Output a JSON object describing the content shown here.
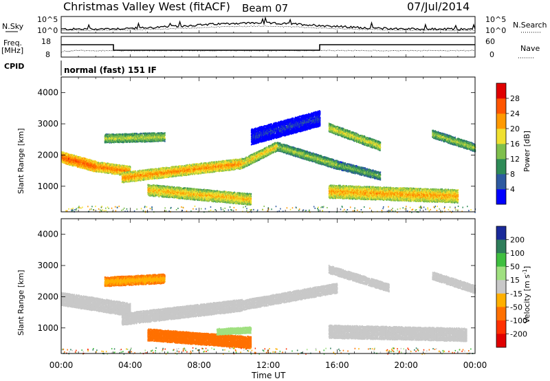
{
  "header": {
    "title": "Christmas Valley West (fitACF)",
    "beam": "Beam 07",
    "date": "07/Jul/2014"
  },
  "top_panel": {
    "left_label": "N.Sky",
    "right_label": "N.Search",
    "left_ticks": [
      "10^5",
      "10^0"
    ],
    "right_ticks": [
      "10^5",
      "10^0"
    ]
  },
  "freq_panel": {
    "left_label_line1": "Freq.",
    "left_label_line2": "[MHz]",
    "left_ticks": [
      "18",
      "8"
    ],
    "right_ticks": [
      "60",
      "0"
    ],
    "right_label": "Nave"
  },
  "cpid": {
    "label": "CPID",
    "value": "normal (fast) 151 IF"
  },
  "time_axis": {
    "label": "Time UT",
    "ticks": [
      "00:00",
      "04:00",
      "08:00",
      "12:00",
      "16:00",
      "20:00",
      "00:00"
    ]
  },
  "chart_data": [
    {
      "type": "heatmap",
      "name": "power",
      "xlabel": "Time UT",
      "ylabel": "Slant Range [km]",
      "x_ticks": [
        "00:00",
        "04:00",
        "08:00",
        "12:00",
        "16:00",
        "20:00",
        "00:00"
      ],
      "y_ticks": [
        1000,
        2000,
        3000,
        4000
      ],
      "ylim": [
        180,
        4500
      ],
      "colorbar_label": "Power [dB]",
      "colorbar_ticks": [
        "4",
        "8",
        "12",
        "16",
        "20",
        "24",
        "28"
      ],
      "colorbar_colors": [
        "#0000ff",
        "#2d5aa0",
        "#2e8b57",
        "#7fbf4c",
        "#f0e030",
        "#ff9900",
        "#ff5500",
        "#e00000"
      ],
      "bands": [
        {
          "t0": 0.0,
          "t1": 2.0,
          "r0": 1950,
          "r1": 1650,
          "w": 350,
          "v": 26
        },
        {
          "t0": 2.0,
          "t1": 4.0,
          "r0": 1650,
          "r1": 1500,
          "w": 320,
          "v": 24
        },
        {
          "t0": 3.5,
          "t1": 10.5,
          "r0": 1300,
          "r1": 1750,
          "w": 330,
          "v": 23
        },
        {
          "t0": 10.5,
          "t1": 12.5,
          "r0": 1750,
          "r1": 2300,
          "w": 300,
          "v": 20
        },
        {
          "t0": 12.5,
          "t1": 16.0,
          "r0": 2300,
          "r1": 1700,
          "w": 280,
          "v": 16
        },
        {
          "t0": 16.0,
          "t1": 18.5,
          "r0": 1700,
          "r1": 1350,
          "w": 260,
          "v": 14
        },
        {
          "t0": 15.5,
          "t1": 23.0,
          "r0": 850,
          "r1": 700,
          "w": 420,
          "v": 22
        },
        {
          "t0": 5.0,
          "t1": 11.0,
          "r0": 900,
          "r1": 600,
          "w": 360,
          "v": 21
        },
        {
          "t0": 2.5,
          "t1": 6.0,
          "r0": 2550,
          "r1": 2600,
          "w": 280,
          "v": 17
        },
        {
          "t0": 15.5,
          "t1": 18.5,
          "r0": 2900,
          "r1": 2300,
          "w": 280,
          "v": 18
        },
        {
          "t0": 21.5,
          "t1": 24.0,
          "r0": 2700,
          "r1": 2250,
          "w": 260,
          "v": 16
        },
        {
          "t0": 11.0,
          "t1": 15.0,
          "r0": 2600,
          "r1": 3200,
          "w": 500,
          "v": 5
        }
      ]
    },
    {
      "type": "heatmap",
      "name": "velocity",
      "xlabel": "Time UT",
      "ylabel": "Slant Range [km]",
      "x_ticks": [
        "00:00",
        "04:00",
        "08:00",
        "12:00",
        "16:00",
        "20:00",
        "00:00"
      ],
      "y_ticks": [
        1000,
        2000,
        3000,
        4000
      ],
      "ylim": [
        180,
        4500
      ],
      "colorbar_label": "Velocity [m s",
      "colorbar_exponent": "-1",
      "colorbar_label_end": "]",
      "colorbar_ticks": [
        "200",
        "100",
        "50",
        "15",
        "-15",
        "-50",
        "-100",
        "-200"
      ],
      "colorbar_colors": [
        "#1a2a9a",
        "#2e7d5a",
        "#3fbf3f",
        "#a0e080",
        "#c8c8c8",
        "#ffb000",
        "#ff7000",
        "#ff3000",
        "#e00000"
      ],
      "bands": [
        {
          "t0": 0.0,
          "t1": 4.0,
          "r0": 1950,
          "r1": 1600,
          "w": 420,
          "v": 0
        },
        {
          "t0": 3.5,
          "t1": 10.5,
          "r0": 1300,
          "r1": 1750,
          "w": 380,
          "v": 0
        },
        {
          "t0": 10.5,
          "t1": 16.0,
          "r0": 1750,
          "r1": 2300,
          "w": 320,
          "v": 0
        },
        {
          "t0": 15.5,
          "t1": 23.5,
          "r0": 900,
          "r1": 800,
          "w": 420,
          "v": 0
        },
        {
          "t0": 5.0,
          "t1": 11.0,
          "r0": 800,
          "r1": 550,
          "w": 380,
          "v": -70
        },
        {
          "t0": 2.5,
          "t1": 6.0,
          "r0": 2500,
          "r1": 2600,
          "w": 300,
          "v": -45
        },
        {
          "t0": 15.5,
          "t1": 19.0,
          "r0": 2900,
          "r1": 2300,
          "w": 260,
          "v": 0
        },
        {
          "t0": 21.5,
          "t1": 24.0,
          "r0": 2700,
          "r1": 2250,
          "w": 260,
          "v": 0
        },
        {
          "t0": 9.0,
          "t1": 11.0,
          "r0": 900,
          "r1": 950,
          "w": 200,
          "v": 40
        }
      ]
    }
  ]
}
